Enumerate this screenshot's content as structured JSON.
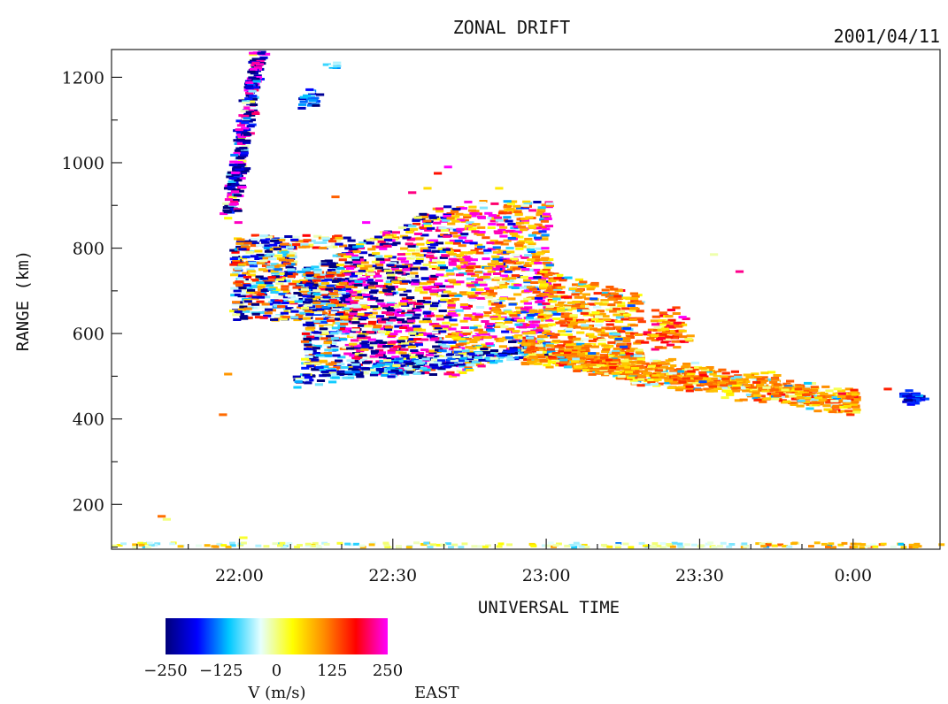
{
  "chart_data": {
    "type": "heatmap",
    "title": "ZONAL DRIFT",
    "date": "2001/04/11",
    "xlabel": "UNIVERSAL TIME",
    "ylabel": "RANGE (km)",
    "x_ticks": [
      "22:00",
      "22:30",
      "23:00",
      "23:30",
      "0:00"
    ],
    "x_tick_minutes": [
      0,
      30,
      60,
      90,
      120
    ],
    "xlim_minutes": [
      -25,
      137
    ],
    "y_ticks": [
      200,
      400,
      600,
      800,
      1000,
      1200
    ],
    "ylim": [
      95,
      1265
    ],
    "grid": false,
    "colorbar": {
      "label": "V (m/s)",
      "direction_label": "EAST",
      "ticks": [
        "−250",
        "−125",
        "0",
        "125",
        "250"
      ],
      "tick_values": [
        -250,
        -125,
        0,
        125,
        250
      ],
      "range": [
        -250,
        250
      ],
      "colors": [
        "#00007a",
        "#0000ff",
        "#00c8ff",
        "#e6ffff",
        "#ffff00",
        "#ff8c00",
        "#ff0000",
        "#ff00ff"
      ]
    },
    "regions": [
      {
        "name": "upper diagonal echo",
        "t_start": -2,
        "t_end": 4,
        "range_start": 880,
        "range_end": 1260
      },
      {
        "name": "main echo body",
        "t_start": -3,
        "t_end": 68,
        "range_start": 490,
        "range_end": 900
      },
      {
        "name": "descending trail",
        "t_start": 55,
        "t_end": 118,
        "range_start": 430,
        "range_end": 600
      },
      {
        "name": "near-range band",
        "t_start": -25,
        "t_end": 137,
        "range_start": 95,
        "range_end": 120
      }
    ]
  }
}
